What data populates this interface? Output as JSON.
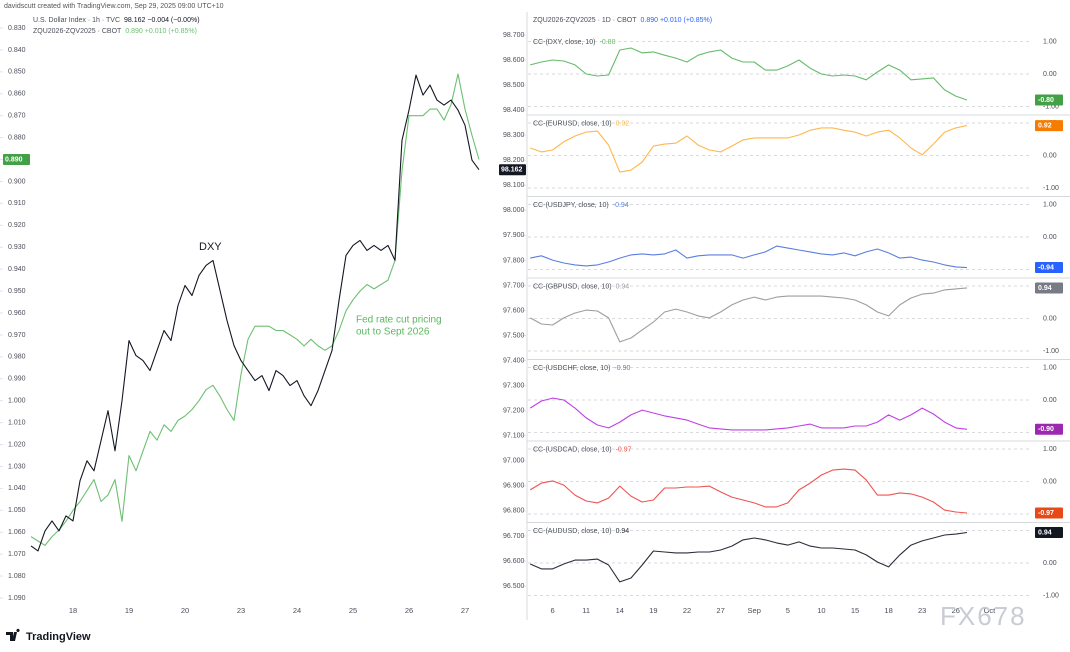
{
  "header": {
    "credit": "davidscutt created with TradingView.com, Sep 29, 2025 09:00 UTC+10"
  },
  "footer": {
    "logo": "TradingView",
    "watermark": "FX678"
  },
  "chart_data": [
    {
      "type": "line",
      "categories": [
        null,
        null,
        null,
        null,
        null,
        null,
        "18",
        null,
        null,
        null,
        null,
        null,
        null,
        null,
        "19",
        null,
        null,
        null,
        null,
        null,
        null,
        null,
        "20",
        null,
        null,
        null,
        null,
        null,
        null,
        null,
        "23",
        null,
        null,
        null,
        null,
        null,
        null,
        null,
        "24",
        null,
        null,
        null,
        null,
        null,
        null,
        null,
        "25",
        null,
        null,
        null,
        null,
        null,
        null,
        null,
        "26",
        null,
        null,
        null,
        null,
        null,
        null,
        null,
        "27",
        null,
        null
      ],
      "ylim": [
        0.83,
        1.09
      ],
      "y_inverted": true,
      "yticks": [
        {
          "value": 0.83,
          "label": "0.830"
        },
        {
          "value": 0.84,
          "label": "0.840"
        },
        {
          "value": 0.85,
          "label": "0.850"
        },
        {
          "value": 0.86,
          "label": "0.860"
        },
        {
          "value": 0.87,
          "label": "0.870"
        },
        {
          "value": 0.88,
          "label": "0.880"
        },
        {
          "value": 0.89,
          "label": "0.890"
        },
        {
          "value": 0.9,
          "label": "0.900"
        },
        {
          "value": 0.91,
          "label": "0.910"
        },
        {
          "value": 0.92,
          "label": "0.920"
        },
        {
          "value": 0.93,
          "label": "0.930"
        },
        {
          "value": 0.94,
          "label": "0.940"
        },
        {
          "value": 0.95,
          "label": "0.950"
        },
        {
          "value": 0.96,
          "label": "0.960"
        },
        {
          "value": 0.97,
          "label": "0.970"
        },
        {
          "value": 0.98,
          "label": "0.980"
        },
        {
          "value": 0.99,
          "label": "0.990"
        },
        {
          "value": 1.0,
          "label": "1.000"
        },
        {
          "value": 1.01,
          "label": "1.010"
        },
        {
          "value": 1.02,
          "label": "1.020"
        },
        {
          "value": 1.03,
          "label": "1.030"
        },
        {
          "value": 1.04,
          "label": "1.040"
        },
        {
          "value": 1.05,
          "label": "1.050"
        },
        {
          "value": 1.06,
          "label": "1.060"
        },
        {
          "value": 1.07,
          "label": "1.070"
        },
        {
          "value": 1.08,
          "label": "1.080"
        },
        {
          "value": 1.09,
          "label": "1.090"
        }
      ],
      "y2lim": [
        96.5,
        98.7
      ],
      "y2ticks": [
        {
          "value": 98.7,
          "label": "98.700"
        },
        {
          "value": 98.6,
          "label": "98.600"
        },
        {
          "value": 98.5,
          "label": "98.500"
        },
        {
          "value": 98.4,
          "label": "98.400"
        },
        {
          "value": 98.3,
          "label": "98.300"
        },
        {
          "value": 98.2,
          "label": "98.200"
        },
        {
          "value": 98.1,
          "label": "98.100"
        },
        {
          "value": 98.0,
          "label": "98.000"
        },
        {
          "value": 97.9,
          "label": "97.900"
        },
        {
          "value": 97.8,
          "label": "97.800"
        },
        {
          "value": 97.7,
          "label": "97.700"
        },
        {
          "value": 97.6,
          "label": "97.600"
        },
        {
          "value": 97.5,
          "label": "97.500"
        },
        {
          "value": 97.4,
          "label": "97.400"
        },
        {
          "value": 97.3,
          "label": "97.300"
        },
        {
          "value": 97.2,
          "label": "97.200"
        },
        {
          "value": 97.1,
          "label": "97.100"
        },
        {
          "value": 97.0,
          "label": "97.000"
        },
        {
          "value": 96.9,
          "label": "96.900"
        },
        {
          "value": 96.8,
          "label": "96.800"
        },
        {
          "value": 96.7,
          "label": "96.700"
        },
        {
          "value": 96.6,
          "label": "96.600"
        },
        {
          "value": 96.5,
          "label": "96.500"
        }
      ],
      "series": [
        {
          "name": "U.S. Dollar Index · 1h · TVC",
          "quote": "98.162 −0.004 (−0.00%)",
          "color": "#131722",
          "axis": "y2",
          "values": [
            96.66,
            96.64,
            96.72,
            96.76,
            96.72,
            96.78,
            96.76,
            96.92,
            97.0,
            96.96,
            97.08,
            97.2,
            97.04,
            97.24,
            97.48,
            97.42,
            97.4,
            97.36,
            97.44,
            97.52,
            97.48,
            97.62,
            97.7,
            97.66,
            97.74,
            97.78,
            97.8,
            97.68,
            97.56,
            97.46,
            97.4,
            97.36,
            97.32,
            97.34,
            97.28,
            97.36,
            97.34,
            97.3,
            97.32,
            97.26,
            97.22,
            97.28,
            97.36,
            97.44,
            97.64,
            97.82,
            97.86,
            97.88,
            97.84,
            97.86,
            97.84,
            97.86,
            97.8,
            98.28,
            98.4,
            98.54,
            98.46,
            98.5,
            98.44,
            98.42,
            98.44,
            98.4,
            98.34,
            98.2,
            98.162
          ]
        },
        {
          "name": "ZQU2026-ZQV2025 · CBOT",
          "quote": "0.890 +0.010 (+0.85%)",
          "color": "#6dbf72",
          "last_label": "0.890",
          "label_color": "#43a047",
          "values": [
            1.062,
            1.064,
            1.066,
            1.062,
            1.059,
            1.055,
            1.05,
            1.046,
            1.041,
            1.036,
            1.046,
            1.043,
            1.036,
            1.055,
            1.025,
            1.032,
            1.023,
            1.014,
            1.018,
            1.011,
            1.014,
            1.009,
            1.007,
            1.004,
            1.0,
            0.995,
            0.993,
            0.998,
            1.004,
            1.009,
            0.988,
            0.972,
            0.966,
            0.966,
            0.966,
            0.968,
            0.968,
            0.97,
            0.972,
            0.975,
            0.972,
            0.975,
            0.977,
            0.975,
            0.968,
            0.959,
            0.954,
            0.95,
            0.947,
            0.949,
            0.947,
            0.945,
            0.936,
            0.895,
            0.87,
            0.87,
            0.87,
            0.867,
            0.867,
            0.872,
            0.865,
            0.851,
            0.867,
            0.879,
            0.89
          ]
        }
      ],
      "annotations": [
        {
          "text": "DXY",
          "color": "#131722"
        },
        {
          "text": "Fed rate cut pricing",
          "color": "#5cb860"
        },
        {
          "text": "out to Sept 2026",
          "color": "#5cb860"
        }
      ]
    },
    {
      "type": "line",
      "title": "ZQU2026-ZQV2025 · 1D · CBOT",
      "quote": "0.890 +0.010 (+0.85%)",
      "categories": [
        null,
        null,
        null,
        "6",
        null,
        null,
        "11",
        null,
        null,
        "14",
        null,
        null,
        "19",
        null,
        null,
        "22",
        null,
        null,
        "27",
        null,
        null,
        "Sep",
        null,
        null,
        "5",
        null,
        null,
        "10",
        null,
        null,
        "15",
        null,
        null,
        "18",
        null,
        null,
        "23",
        null,
        null,
        "26",
        null,
        null,
        "Oct"
      ],
      "grid": true,
      "panels": [
        {
          "name": "CC-(DXY, close, 10)",
          "last_label": "-0.80",
          "color": "#66bb6a",
          "label_color": "#43a047",
          "ylim": [
            -1.25,
            1.25
          ],
          "yticks": [
            {
              "value": 1,
              "label": "1.00"
            },
            {
              "value": 0,
              "label": "0.00"
            },
            {
              "value": -1,
              "label": "-1.00"
            }
          ],
          "values": [
            null,
            0.28,
            0.37,
            0.43,
            0.4,
            0.28,
            0.0,
            -0.06,
            -0.03,
            0.74,
            0.8,
            0.65,
            0.68,
            0.58,
            0.49,
            0.37,
            0.58,
            0.68,
            0.74,
            0.49,
            0.37,
            0.37,
            0.12,
            0.12,
            0.25,
            0.43,
            0.18,
            0.0,
            -0.06,
            -0.03,
            -0.06,
            -0.18,
            0.06,
            0.28,
            0.12,
            -0.18,
            -0.15,
            -0.12,
            -0.49,
            -0.68,
            -0.8,
            null,
            null
          ]
        },
        {
          "name": "CC-(EURUSD, close, 10)",
          "last_label": "0.92",
          "color": "#ffb74d",
          "label_color": "#f57c00",
          "ylim": [
            -1.25,
            1.25
          ],
          "yticks": [
            {
              "value": 1,
              "label": "1.00"
            },
            {
              "value": 0,
              "label": "0.00"
            },
            {
              "value": -1,
              "label": "-1.00"
            }
          ],
          "values": [
            null,
            0.23,
            0.11,
            0.17,
            0.42,
            0.6,
            0.72,
            0.75,
            0.32,
            -0.51,
            -0.45,
            -0.2,
            0.29,
            0.35,
            0.38,
            0.6,
            0.32,
            0.17,
            0.11,
            0.29,
            0.48,
            0.54,
            0.54,
            0.54,
            0.54,
            0.63,
            0.78,
            0.85,
            0.85,
            0.78,
            0.72,
            0.6,
            0.72,
            0.78,
            0.54,
            0.23,
            0.02,
            0.35,
            0.72,
            0.85,
            0.92,
            null,
            null
          ]
        },
        {
          "name": "CC-(USDJPY, close, 10)",
          "last_label": "-0.94",
          "color": "#5b7fe0",
          "label_color": "#2962ff",
          "ylim": [
            -1.25,
            1.25
          ],
          "yticks": [
            {
              "value": 1,
              "label": "1.00"
            },
            {
              "value": 0,
              "label": "0.00"
            },
            {
              "value": -1,
              "label": "-1.00"
            }
          ],
          "values": [
            null,
            -0.65,
            -0.58,
            -0.71,
            -0.8,
            -0.86,
            -0.89,
            -0.86,
            -0.77,
            -0.65,
            -0.55,
            -0.52,
            -0.55,
            -0.52,
            -0.4,
            -0.65,
            -0.58,
            -0.55,
            -0.55,
            -0.55,
            -0.65,
            -0.55,
            -0.46,
            -0.28,
            -0.34,
            -0.4,
            -0.46,
            -0.52,
            -0.55,
            -0.49,
            -0.58,
            -0.46,
            -0.37,
            -0.49,
            -0.65,
            -0.62,
            -0.71,
            -0.77,
            -0.86,
            -0.92,
            -0.94,
            null,
            null
          ]
        },
        {
          "name": "CC-(GBPUSD, close, 10)",
          "last_label": "0.94",
          "color": "#9e9e9e",
          "label_color": "#787b86",
          "ylim": [
            -1.25,
            1.25
          ],
          "yticks": [
            {
              "value": 1,
              "label": "1.00"
            },
            {
              "value": 0,
              "label": "0.00"
            },
            {
              "value": -1,
              "label": "-1.00"
            }
          ],
          "values": [
            null,
            0.02,
            -0.17,
            -0.2,
            0.02,
            0.17,
            0.26,
            0.23,
            0.02,
            -0.72,
            -0.6,
            -0.35,
            -0.11,
            0.2,
            0.29,
            0.2,
            0.08,
            0.02,
            0.2,
            0.42,
            0.57,
            0.66,
            0.57,
            0.66,
            0.69,
            0.69,
            0.69,
            0.69,
            0.66,
            0.63,
            0.57,
            0.42,
            0.2,
            0.08,
            0.42,
            0.63,
            0.75,
            0.78,
            0.88,
            0.91,
            0.94,
            null,
            null
          ]
        },
        {
          "name": "CC-(USDCHF, close, 10)",
          "last_label": "-0.90",
          "color": "#c040e6",
          "label_color": "#9c27b0",
          "ylim": [
            -1.25,
            1.25
          ],
          "yticks": [
            {
              "value": 1,
              "label": "1.00"
            },
            {
              "value": 0,
              "label": "0.00"
            },
            {
              "value": -1,
              "label": "-1.00"
            }
          ],
          "values": [
            null,
            -0.25,
            -0.03,
            0.06,
            0.0,
            -0.25,
            -0.55,
            -0.77,
            -0.86,
            -0.68,
            -0.46,
            -0.31,
            -0.4,
            -0.49,
            -0.55,
            -0.62,
            -0.74,
            -0.86,
            -0.89,
            -0.92,
            -0.92,
            -0.92,
            -0.92,
            -0.89,
            -0.86,
            -0.8,
            -0.74,
            -0.86,
            -0.86,
            -0.86,
            -0.8,
            -0.8,
            -0.68,
            -0.46,
            -0.62,
            -0.46,
            -0.25,
            -0.43,
            -0.68,
            -0.86,
            -0.9,
            null,
            null
          ]
        },
        {
          "name": "CC-(USDCAD, close, 10)",
          "last_label": "-0.97",
          "color": "#ef5350",
          "label_color": "#e64a19",
          "ylim": [
            -1.25,
            1.25
          ],
          "yticks": [
            {
              "value": 1,
              "label": "1.00"
            },
            {
              "value": 0,
              "label": "0.00"
            },
            {
              "value": -1,
              "label": "-1.00"
            }
          ],
          "values": [
            null,
            -0.26,
            -0.05,
            0.02,
            -0.11,
            -0.42,
            -0.6,
            -0.66,
            -0.51,
            -0.14,
            -0.45,
            -0.63,
            -0.57,
            -0.2,
            -0.2,
            -0.17,
            -0.17,
            -0.14,
            -0.32,
            -0.48,
            -0.57,
            -0.66,
            -0.78,
            -0.78,
            -0.66,
            -0.26,
            -0.05,
            0.2,
            0.35,
            0.38,
            0.35,
            0.05,
            -0.42,
            -0.42,
            -0.35,
            -0.38,
            -0.48,
            -0.63,
            -0.88,
            -0.94,
            -0.97,
            null,
            null
          ]
        },
        {
          "name": "CC-(AUDUSD, close, 10)",
          "last_label": "0.94",
          "color": "#2a2e39",
          "label_color": "#131722",
          "ylim": [
            -1.25,
            1.25
          ],
          "yticks": [
            {
              "value": 1,
              "label": "1.00"
            },
            {
              "value": 0,
              "label": "0.00"
            },
            {
              "value": -1,
              "label": "-1.00"
            }
          ],
          "values": [
            null,
            -0.03,
            -0.18,
            -0.18,
            -0.03,
            0.09,
            0.09,
            0.12,
            -0.06,
            -0.58,
            -0.46,
            -0.06,
            0.37,
            0.34,
            0.31,
            0.31,
            0.34,
            0.34,
            0.4,
            0.52,
            0.71,
            0.77,
            0.71,
            0.62,
            0.55,
            0.65,
            0.52,
            0.46,
            0.46,
            0.43,
            0.4,
            0.25,
            0.03,
            -0.12,
            0.25,
            0.55,
            0.68,
            0.77,
            0.86,
            0.89,
            0.94,
            null,
            null
          ]
        }
      ]
    }
  ]
}
